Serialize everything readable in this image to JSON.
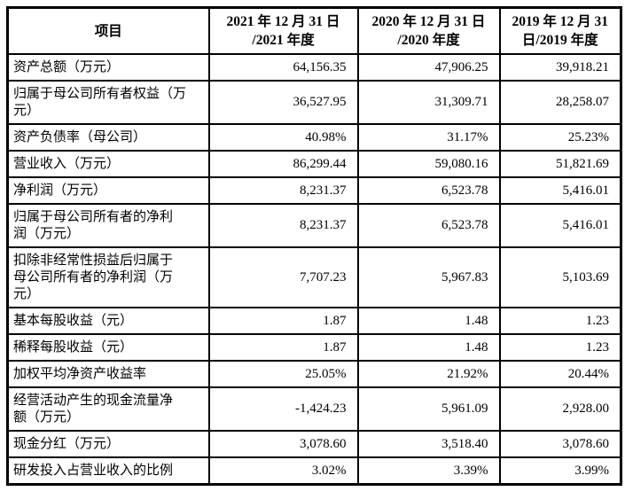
{
  "colors": {
    "background": "#ffffff",
    "border": "#000000",
    "text": "#000000"
  },
  "chart_data": {
    "type": "table",
    "columns": [
      "项目",
      "2021 年 12 月 31 日\n/2021 年度",
      "2020 年 12 月 31 日\n/2020 年度",
      "2019 年 12 月 31\n日/2019 年度"
    ],
    "rows": [
      {
        "label": "资产总额（万元）",
        "values": [
          "64,156.35",
          "47,906.25",
          "39,918.21"
        ]
      },
      {
        "label": "归属于母公司所有者权益（万\n元）",
        "values": [
          "36,527.95",
          "31,309.71",
          "28,258.07"
        ]
      },
      {
        "label": "资产负债率（母公司）",
        "values": [
          "40.98%",
          "31.17%",
          "25.23%"
        ]
      },
      {
        "label": "营业收入（万元）",
        "values": [
          "86,299.44",
          "59,080.16",
          "51,821.69"
        ]
      },
      {
        "label": "净利润（万元）",
        "values": [
          "8,231.37",
          "6,523.78",
          "5,416.01"
        ]
      },
      {
        "label": "归属于母公司所有者的净利\n润（万元）",
        "values": [
          "8,231.37",
          "6,523.78",
          "5,416.01"
        ]
      },
      {
        "label": "扣除非经常性损益后归属于\n母公司所有者的净利润（万\n元）",
        "values": [
          "7,707.23",
          "5,967.83",
          "5,103.69"
        ]
      },
      {
        "label": "基本每股收益（元）",
        "values": [
          "1.87",
          "1.48",
          "1.23"
        ]
      },
      {
        "label": "稀释每股收益（元）",
        "values": [
          "1.87",
          "1.48",
          "1.23"
        ]
      },
      {
        "label": "加权平均净资产收益率",
        "values": [
          "25.05%",
          "21.92%",
          "20.44%"
        ]
      },
      {
        "label": "经营活动产生的现金流量净\n额（万元）",
        "values": [
          "-1,424.23",
          "5,961.09",
          "2,928.00"
        ]
      },
      {
        "label": "现金分红（万元）",
        "values": [
          "3,078.60",
          "3,518.40",
          "3,078.60"
        ]
      },
      {
        "label": "研发投入占营业收入的比例",
        "values": [
          "3.02%",
          "3.39%",
          "3.99%"
        ]
      }
    ]
  }
}
